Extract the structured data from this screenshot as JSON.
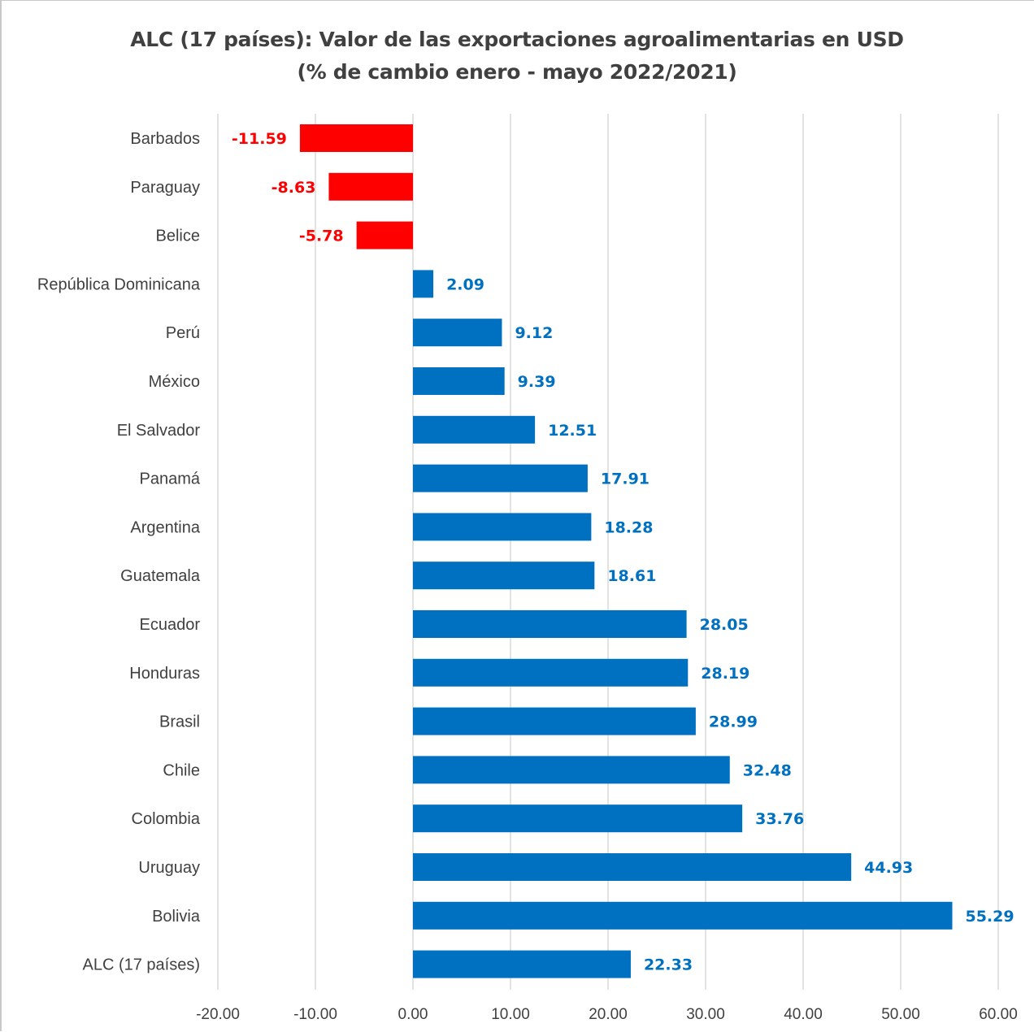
{
  "chart_data": {
    "type": "bar",
    "orientation": "horizontal",
    "title": "ALC (17 países): Valor de las exportaciones agroalimentarias en USD",
    "subtitle": "(% de cambio enero - mayo 2022/2021)",
    "categories": [
      "Barbados",
      "Paraguay",
      "Belice",
      "República Dominicana",
      "Perú",
      "México",
      "El Salvador",
      "Panamá",
      "Argentina",
      "Guatemala",
      "Ecuador",
      "Honduras",
      "Brasil",
      "Chile",
      "Colombia",
      "Uruguay",
      "Bolivia",
      "ALC (17 países)"
    ],
    "values": [
      -11.59,
      -8.63,
      -5.78,
      2.09,
      9.12,
      9.39,
      12.51,
      17.91,
      18.28,
      18.61,
      28.05,
      28.19,
      28.99,
      32.48,
      33.76,
      44.93,
      55.29,
      22.33
    ],
    "data_labels": [
      "-11.59",
      "-8.63",
      "-5.78",
      "2.09",
      "9.12",
      "9.39",
      "12.51",
      "17.91",
      "18.28",
      "18.61",
      "28.05",
      "28.19",
      "28.99",
      "32.48",
      "33.76",
      "44.93",
      "55.29",
      "22.33"
    ],
    "xlim": [
      -20,
      60
    ],
    "xticks": [
      -20,
      -10,
      0,
      10,
      20,
      30,
      40,
      50,
      60
    ],
    "xtick_labels": [
      "-20.00",
      "-10.00",
      "0.00",
      "10.00",
      "20.00",
      "30.00",
      "40.00",
      "50.00",
      "60.00"
    ],
    "grid": "vertical",
    "legend": "none",
    "colors": {
      "negative": "#ff0000",
      "positive": "#0070c0",
      "grid": "#d9d9d9",
      "text": "#404040"
    }
  }
}
